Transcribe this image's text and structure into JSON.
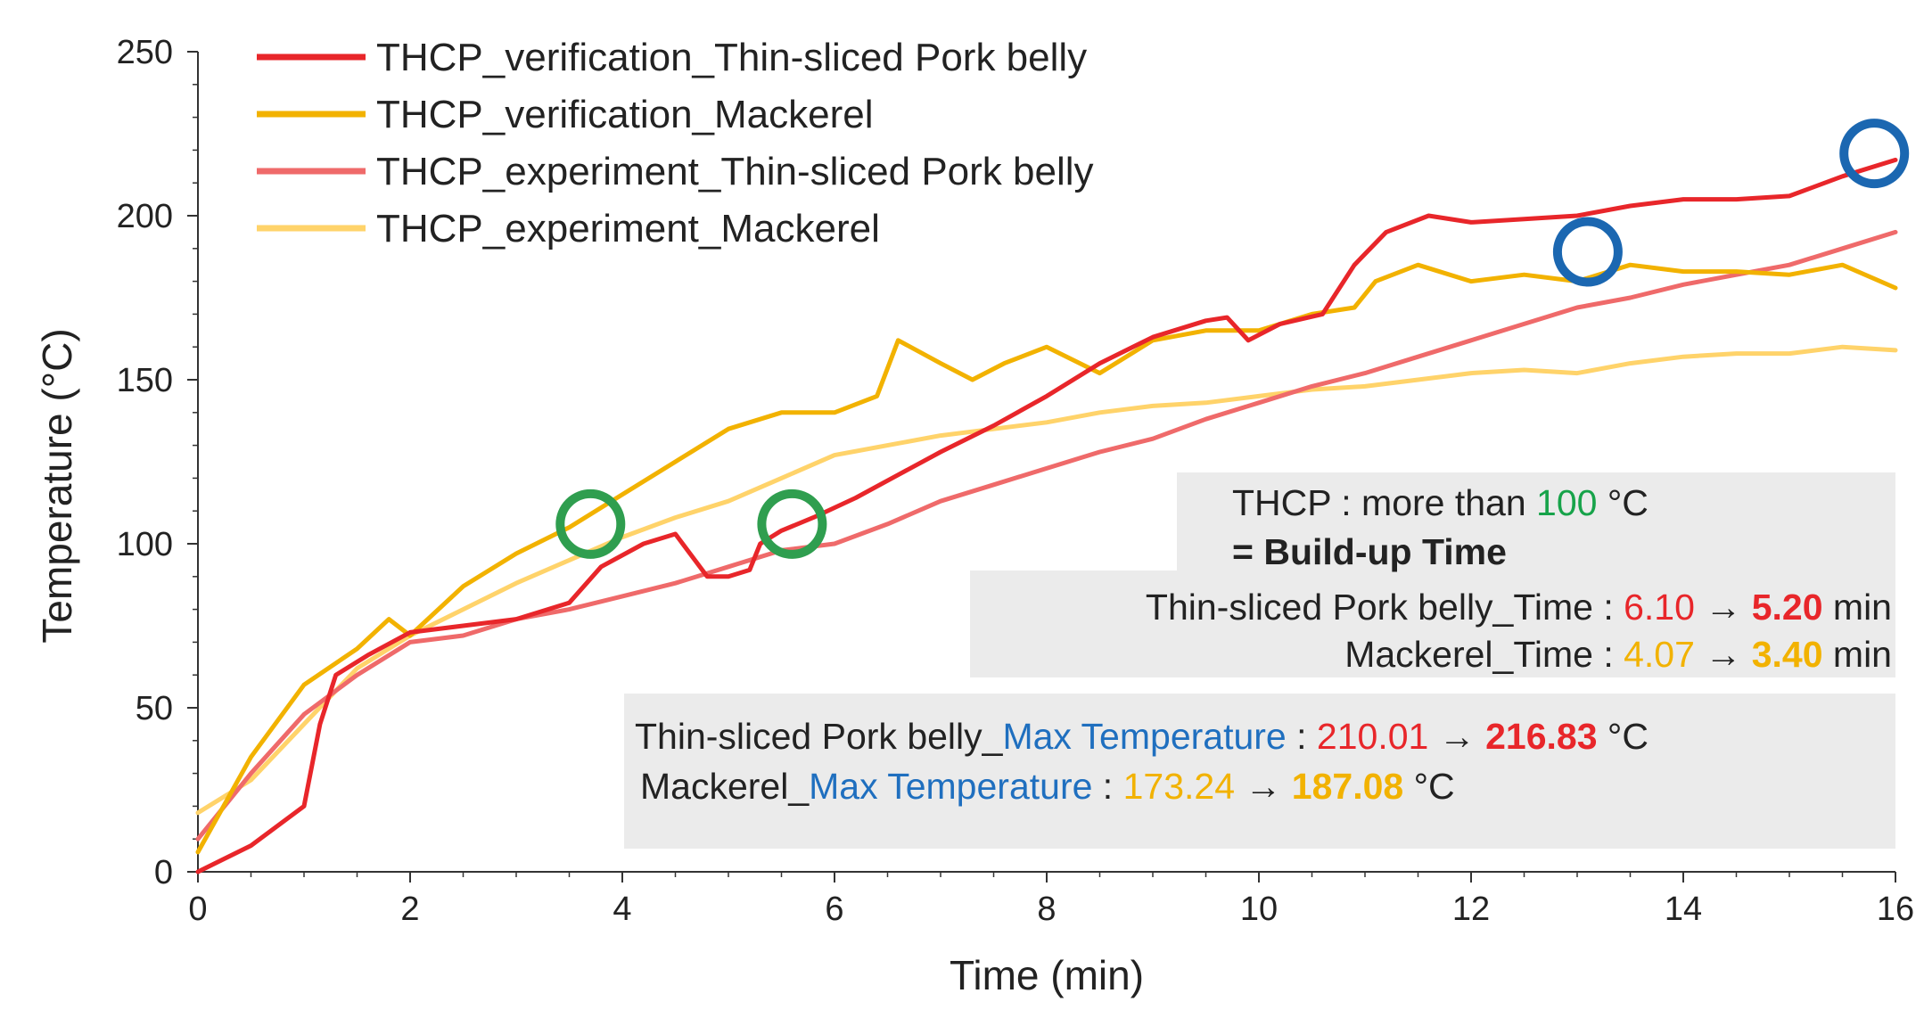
{
  "chart_data": {
    "type": "line",
    "xlabel": "Time (min)",
    "ylabel": "Temperature (°C)",
    "xlim": [
      0,
      16
    ],
    "ylim": [
      0,
      250
    ],
    "xticks": [
      0,
      2,
      4,
      6,
      8,
      10,
      12,
      14,
      16
    ],
    "yticks": [
      0,
      50,
      100,
      150,
      200,
      250
    ],
    "legend_position": "top-left",
    "series": [
      {
        "name": "THCP_verification_Thin-sliced Pork belly",
        "color": "#e8262a",
        "x": [
          0,
          0.5,
          1.0,
          1.15,
          1.3,
          1.6,
          2.0,
          2.5,
          3.0,
          3.5,
          3.8,
          4.2,
          4.5,
          4.8,
          5.0,
          5.2,
          5.3,
          5.5,
          5.8,
          6.2,
          6.6,
          7.0,
          7.5,
          8.0,
          8.5,
          9.0,
          9.5,
          9.7,
          9.9,
          10.2,
          10.6,
          10.9,
          11.2,
          11.6,
          12.0,
          12.5,
          13.0,
          13.5,
          14.0,
          14.5,
          15.0,
          15.5,
          16.0
        ],
        "y": [
          0,
          8,
          20,
          45,
          60,
          66,
          73,
          75,
          77,
          82,
          93,
          100,
          103,
          90,
          90,
          92,
          100,
          104,
          108,
          114,
          121,
          128,
          136,
          145,
          155,
          163,
          168,
          169,
          162,
          167,
          170,
          185,
          195,
          200,
          198,
          199,
          200,
          203,
          205,
          205,
          206,
          212,
          217
        ]
      },
      {
        "name": "THCP_verification_Mackerel",
        "color": "#f2b200",
        "x": [
          0,
          0.5,
          1.0,
          1.5,
          1.8,
          2.0,
          2.5,
          3.0,
          3.5,
          4.0,
          4.5,
          5.0,
          5.5,
          6.0,
          6.4,
          6.6,
          7.0,
          7.3,
          7.6,
          8.0,
          8.5,
          9.0,
          9.5,
          10.0,
          10.5,
          10.9,
          11.1,
          11.5,
          12.0,
          12.5,
          13.0,
          13.5,
          14.0,
          14.5,
          15.0,
          15.5,
          16.0
        ],
        "y": [
          6,
          35,
          57,
          68,
          77,
          72,
          87,
          97,
          105,
          115,
          125,
          135,
          140,
          140,
          145,
          162,
          155,
          150,
          155,
          160,
          152,
          162,
          165,
          165,
          170,
          172,
          180,
          185,
          180,
          182,
          180,
          185,
          183,
          183,
          182,
          185,
          178
        ]
      },
      {
        "name": "THCP_experiment_Thin-sliced Pork belly",
        "color": "#ef6a6a",
        "x": [
          0,
          0.5,
          1.0,
          1.5,
          2.0,
          2.5,
          3.0,
          3.5,
          4.0,
          4.5,
          5.0,
          5.5,
          6.0,
          6.5,
          7.0,
          7.5,
          8.0,
          8.5,
          9.0,
          9.5,
          10.0,
          10.5,
          11.0,
          11.5,
          12.0,
          12.5,
          13.0,
          13.5,
          14.0,
          14.5,
          15.0,
          15.5,
          16.0
        ],
        "y": [
          10,
          30,
          48,
          60,
          70,
          72,
          77,
          80,
          84,
          88,
          93,
          98,
          100,
          106,
          113,
          118,
          123,
          128,
          132,
          138,
          143,
          148,
          152,
          157,
          162,
          167,
          172,
          175,
          179,
          182,
          185,
          190,
          195
        ]
      },
      {
        "name": "THCP_experiment_Mackerel",
        "color": "#ffd36a",
        "x": [
          0,
          0.5,
          1.0,
          1.5,
          2.0,
          2.5,
          3.0,
          3.5,
          4.0,
          4.5,
          5.0,
          5.5,
          6.0,
          6.5,
          7.0,
          7.5,
          8.0,
          8.5,
          9.0,
          9.5,
          10.0,
          10.5,
          11.0,
          11.5,
          12.0,
          12.5,
          13.0,
          13.5,
          14.0,
          14.5,
          15.0,
          15.5,
          16.0
        ],
        "y": [
          18,
          28,
          45,
          62,
          72,
          80,
          88,
          95,
          102,
          108,
          113,
          120,
          127,
          130,
          133,
          135,
          137,
          140,
          142,
          143,
          145,
          147,
          148,
          150,
          152,
          153,
          152,
          155,
          157,
          158,
          158,
          160,
          159
        ]
      }
    ],
    "markers": [
      {
        "kind": "circle",
        "color": "#2f9e4f",
        "x": 3.7,
        "y": 106
      },
      {
        "kind": "circle",
        "color": "#2f9e4f",
        "x": 5.6,
        "y": 106
      },
      {
        "kind": "circle",
        "color": "#1b67b1",
        "x": 13.1,
        "y": 189
      },
      {
        "kind": "circle",
        "color": "#1b67b1",
        "x": 15.8,
        "y": 219
      }
    ],
    "annotations": {
      "buildup": {
        "line1_prefix": "THCP : more than ",
        "line1_value": "100",
        "line1_suffix": " °C",
        "line2": "= Build-up Time",
        "pork_label": "Thin-sliced Pork belly_Time : ",
        "pork_old": "6.10",
        "pork_arrow": " → ",
        "pork_new": "5.20",
        "pork_unit": " min",
        "mack_label": "Mackerel_Time : ",
        "mack_old": "4.07",
        "mack_arrow": " → ",
        "mack_new": "3.40",
        "mack_unit": " min"
      },
      "maxtemp": {
        "pork_prefix": "Thin-sliced Pork belly_",
        "pork_key": "Max Temperature",
        "pork_sep": " : ",
        "pork_old": "210.01",
        "pork_arrow": " → ",
        "pork_new": "216.83",
        "pork_unit": "  °C",
        "mack_prefix": "Mackerel_",
        "mack_key": "Max Temperature",
        "mack_sep": " : ",
        "mack_old": "173.24",
        "mack_arrow": " → ",
        "mack_new": "187.08",
        "mack_unit": "  °C"
      }
    }
  },
  "colors": {
    "green": "#17a34a",
    "blue": "#1f6fbf",
    "red": "#e8262a",
    "orange": "#f2b200",
    "box_fill": "#ebebeb"
  }
}
